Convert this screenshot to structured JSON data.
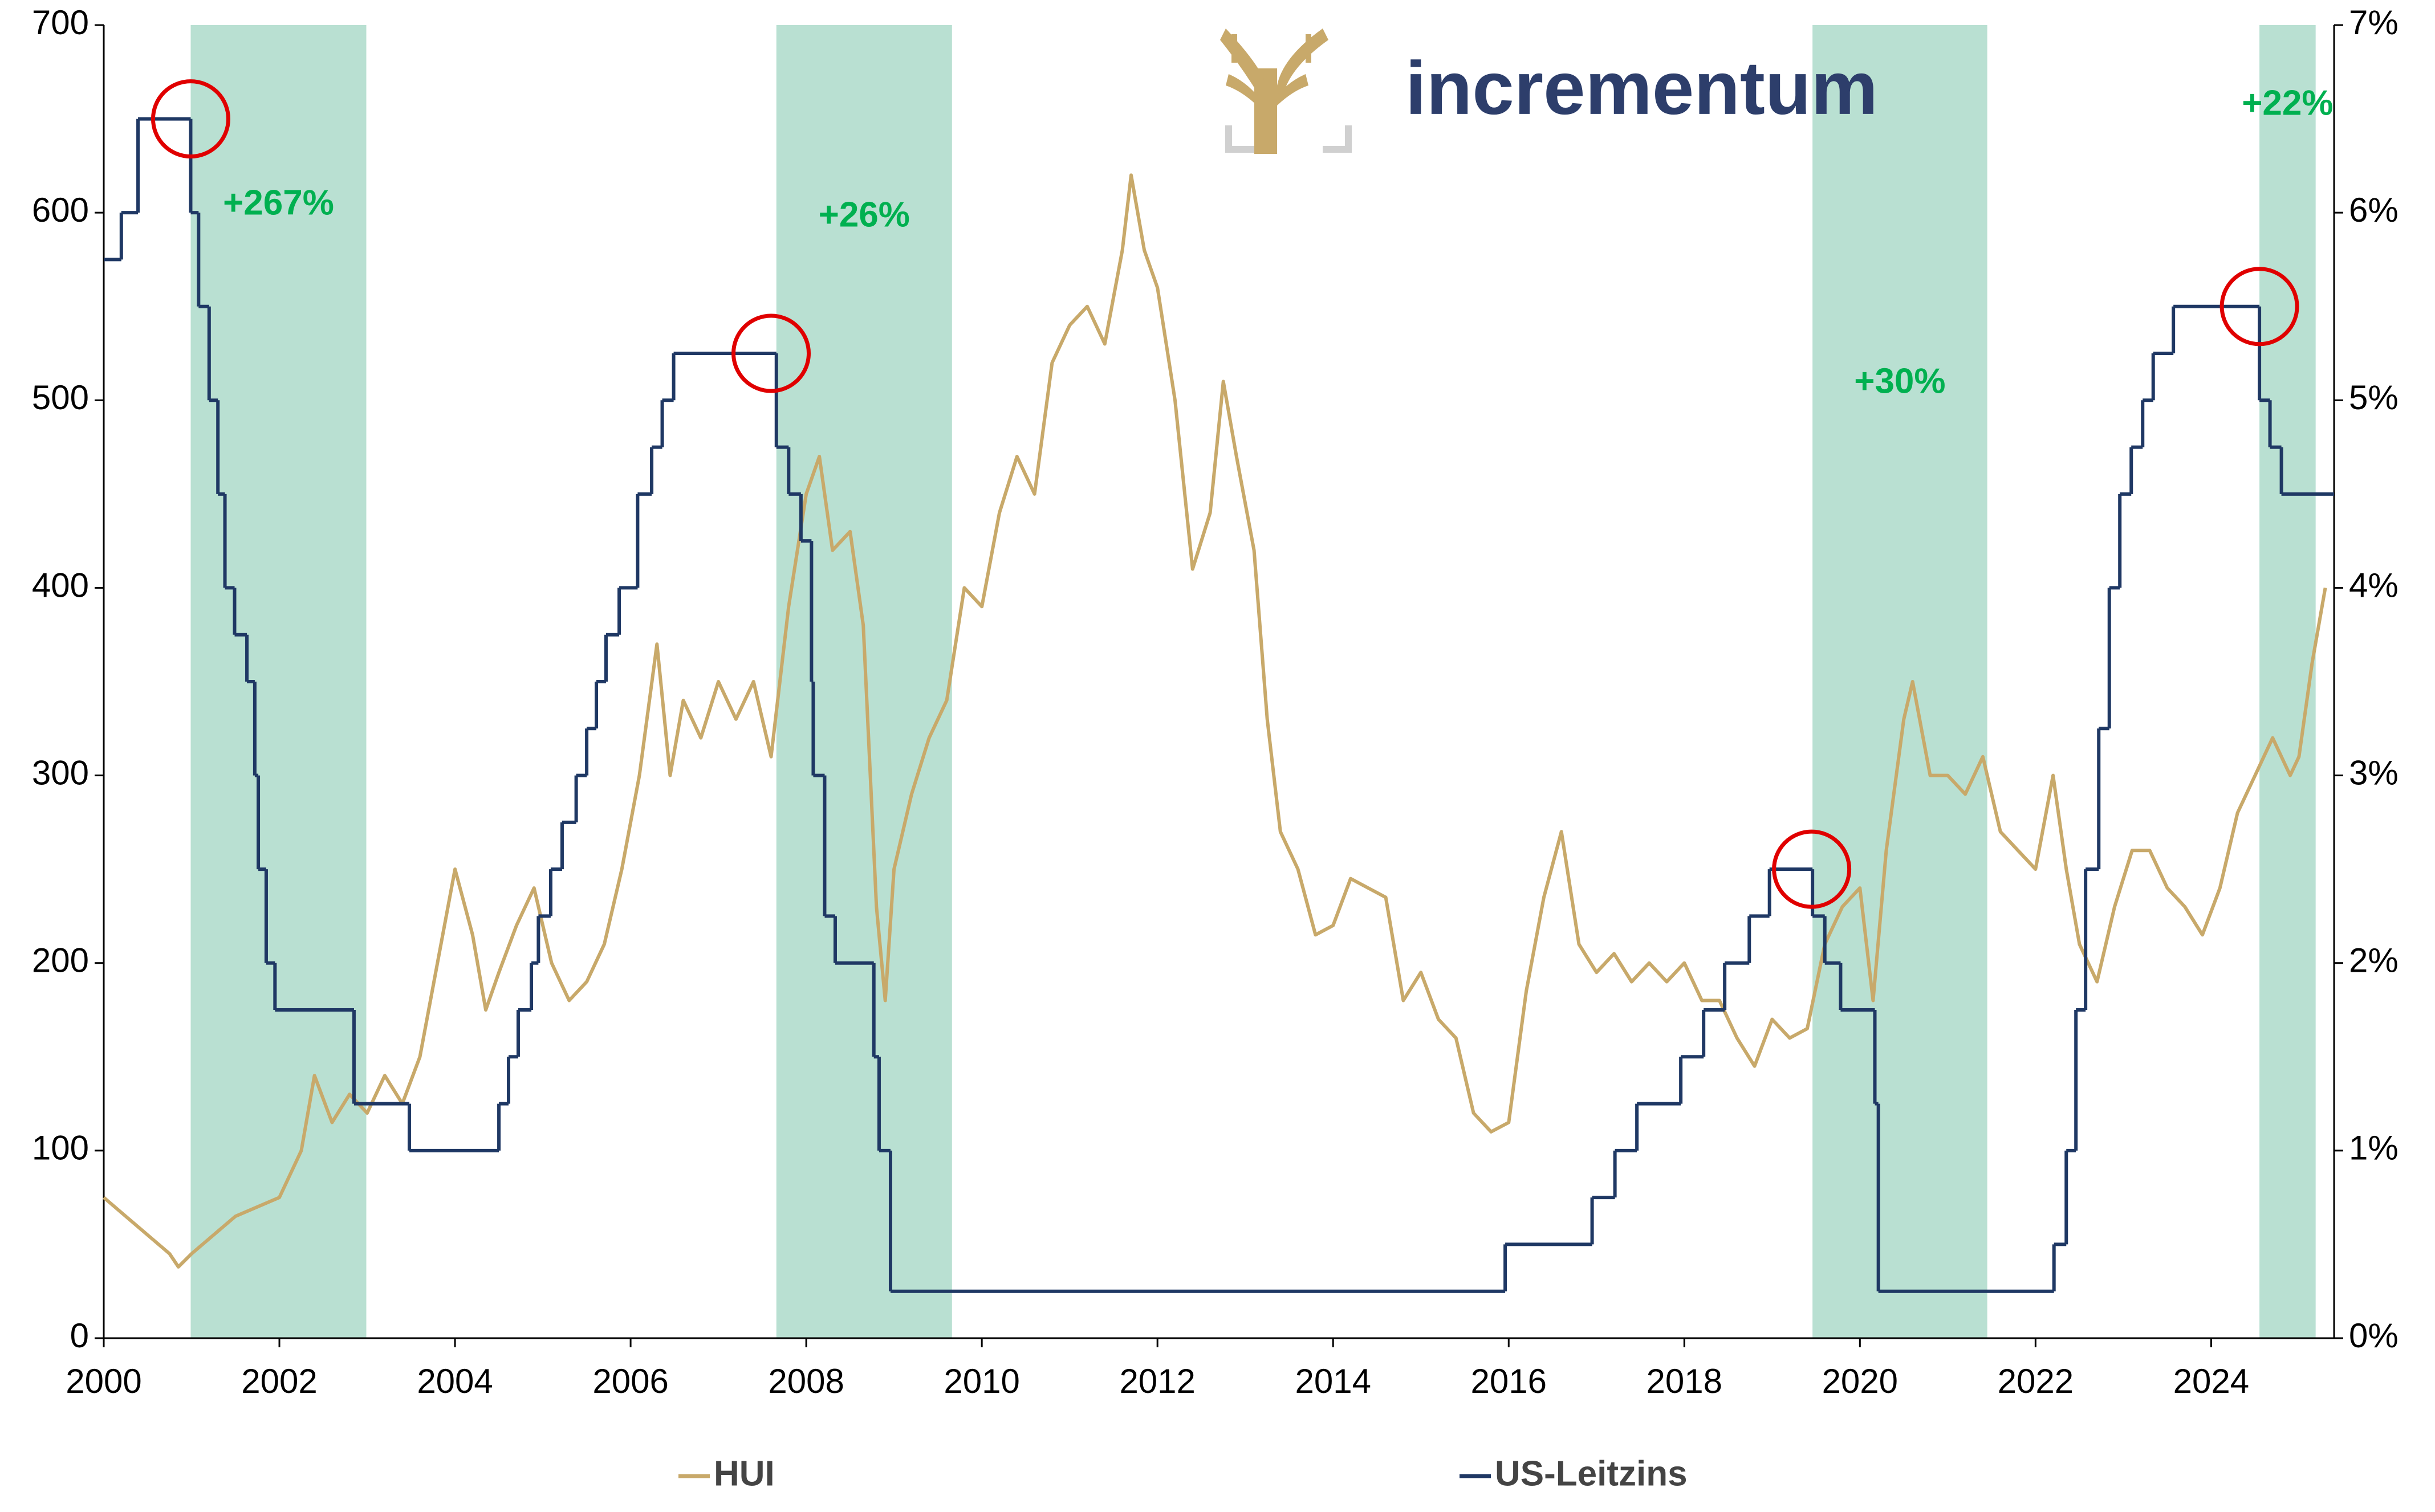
{
  "chart_data": {
    "type": "line",
    "logo": "incrementum",
    "xlim": [
      2000,
      2025.4
    ],
    "xticks": [
      2000,
      2002,
      2004,
      2006,
      2008,
      2010,
      2012,
      2014,
      2016,
      2018,
      2020,
      2022,
      2024
    ],
    "ylim": [
      0,
      700
    ],
    "yticks": [
      0,
      100,
      200,
      300,
      400,
      500,
      600,
      700
    ],
    "y2lim": [
      0,
      7
    ],
    "y2ticks": [
      {
        "value": 0,
        "label": "0%"
      },
      {
        "value": 1,
        "label": "1%"
      },
      {
        "value": 2,
        "label": "2%"
      },
      {
        "value": 3,
        "label": "3%"
      },
      {
        "value": 4,
        "label": "4%"
      },
      {
        "value": 5,
        "label": "5%"
      },
      {
        "value": 6,
        "label": "6%"
      },
      {
        "value": 7,
        "label": "7%"
      }
    ],
    "legend": "bottom",
    "series": [
      {
        "name": "HUI",
        "color": "#c8a96a",
        "step": false,
        "x": [
          2000.0,
          2000.25,
          2000.5,
          2000.75,
          2000.85,
          2001.0,
          2001.25,
          2001.5,
          2001.75,
          2002.0,
          2002.25,
          2002.4,
          2002.6,
          2002.8,
          2003.0,
          2003.2,
          2003.4,
          2003.6,
          2003.8,
          2004.0,
          2004.2,
          2004.35,
          2004.5,
          2004.7,
          2004.9,
          2005.1,
          2005.3,
          2005.5,
          2005.7,
          2005.9,
          2006.1,
          2006.3,
          2006.45,
          2006.6,
          2006.8,
          2007.0,
          2007.2,
          2007.4,
          2007.6,
          2007.8,
          2008.0,
          2008.15,
          2008.3,
          2008.5,
          2008.65,
          2008.8,
          2008.9,
          2009.0,
          2009.2,
          2009.4,
          2009.6,
          2009.8,
          2010.0,
          2010.2,
          2010.4,
          2010.6,
          2010.8,
          2011.0,
          2011.2,
          2011.4,
          2011.6,
          2011.7,
          2011.85,
          2012.0,
          2012.2,
          2012.4,
          2012.6,
          2012.75,
          2012.9,
          2013.1,
          2013.25,
          2013.4,
          2013.6,
          2013.8,
          2014.0,
          2014.2,
          2014.4,
          2014.6,
          2014.8,
          2015.0,
          2015.2,
          2015.4,
          2015.6,
          2015.8,
          2016.0,
          2016.2,
          2016.4,
          2016.6,
          2016.8,
          2017.0,
          2017.2,
          2017.4,
          2017.6,
          2017.8,
          2018.0,
          2018.2,
          2018.4,
          2018.6,
          2018.8,
          2019.0,
          2019.2,
          2019.4,
          2019.6,
          2019.8,
          2020.0,
          2020.15,
          2020.3,
          2020.5,
          2020.6,
          2020.8,
          2021.0,
          2021.2,
          2021.4,
          2021.6,
          2021.8,
          2022.0,
          2022.2,
          2022.35,
          2022.5,
          2022.7,
          2022.9,
          2023.1,
          2023.3,
          2023.5,
          2023.7,
          2023.9,
          2024.1,
          2024.3,
          2024.5,
          2024.7,
          2024.9,
          2025.0,
          2025.15,
          2025.3
        ],
        "values": [
          75,
          65,
          55,
          45,
          38,
          45,
          55,
          65,
          70,
          75,
          100,
          140,
          115,
          130,
          120,
          140,
          125,
          150,
          200,
          250,
          215,
          175,
          195,
          220,
          240,
          200,
          180,
          190,
          210,
          250,
          300,
          370,
          300,
          340,
          320,
          350,
          330,
          350,
          310,
          390,
          450,
          470,
          420,
          430,
          380,
          230,
          180,
          250,
          290,
          320,
          340,
          400,
          390,
          440,
          470,
          450,
          520,
          540,
          550,
          530,
          580,
          620,
          580,
          560,
          500,
          410,
          440,
          510,
          470,
          420,
          330,
          270,
          250,
          215,
          220,
          245,
          240,
          235,
          180,
          195,
          170,
          160,
          120,
          110,
          115,
          185,
          235,
          270,
          210,
          195,
          205,
          190,
          200,
          190,
          200,
          180,
          180,
          160,
          145,
          170,
          160,
          165,
          210,
          230,
          240,
          180,
          260,
          330,
          350,
          300,
          300,
          290,
          310,
          270,
          260,
          250,
          300,
          250,
          210,
          190,
          230,
          260,
          260,
          240,
          230,
          215,
          240,
          280,
          300,
          320,
          300,
          310,
          360,
          400
        ]
      },
      {
        "name": "US-Leitzins",
        "color": "#1f3864",
        "axis": "y2",
        "step": true,
        "x": [
          2000.0,
          2000.2,
          2000.39,
          2000.99,
          2001.08,
          2001.2,
          2001.3,
          2001.38,
          2001.49,
          2001.63,
          2001.72,
          2001.76,
          2001.85,
          2001.95,
          2002.85,
          2003.48,
          2004.5,
          2004.61,
          2004.72,
          2004.87,
          2004.95,
          2005.09,
          2005.22,
          2005.38,
          2005.5,
          2005.61,
          2005.72,
          2005.87,
          2006.08,
          2006.24,
          2006.36,
          2006.49,
          2007.66,
          2007.8,
          2007.94,
          2008.06,
          2008.08,
          2008.21,
          2008.33,
          2008.77,
          2008.83,
          2008.96,
          2015.96,
          2016.95,
          2017.21,
          2017.46,
          2017.96,
          2018.22,
          2018.46,
          2018.74,
          2018.97,
          2019.46,
          2019.6,
          2019.78,
          2020.17,
          2020.21,
          2022.21,
          2022.35,
          2022.46,
          2022.57,
          2022.72,
          2022.84,
          2022.96,
          2023.09,
          2023.22,
          2023.34,
          2023.57,
          2024.55,
          2024.67,
          2024.8,
          2025.4
        ],
        "values": [
          5.75,
          6.0,
          6.5,
          6.0,
          5.5,
          5.0,
          4.5,
          4.0,
          3.75,
          3.5,
          3.0,
          2.5,
          2.0,
          1.75,
          1.25,
          1.0,
          1.25,
          1.5,
          1.75,
          2.0,
          2.25,
          2.5,
          2.75,
          3.0,
          3.25,
          3.5,
          3.75,
          4.0,
          4.5,
          4.75,
          5.0,
          5.25,
          4.75,
          4.5,
          4.25,
          3.5,
          3.0,
          2.25,
          2.0,
          1.5,
          1.0,
          0.25,
          0.5,
          0.75,
          1.0,
          1.25,
          1.5,
          1.75,
          2.0,
          2.25,
          2.5,
          2.25,
          2.0,
          1.75,
          1.25,
          0.25,
          0.5,
          1.0,
          1.75,
          2.5,
          3.25,
          4.0,
          4.5,
          4.75,
          5.0,
          5.25,
          5.5,
          5.0,
          4.75,
          4.5,
          4.5
        ]
      }
    ],
    "periods": [
      {
        "start": 2000.99,
        "end": 2002.99,
        "label": "+267%",
        "color": "#b9e0d2"
      },
      {
        "start": 2007.66,
        "end": 2009.66,
        "label": "+26%",
        "color": "#b9e0d2"
      },
      {
        "start": 2019.46,
        "end": 2021.45,
        "label": "+30%",
        "color": "#b9e0d2"
      },
      {
        "start": 2024.55,
        "end": 2025.19,
        "label": "+22%",
        "color": "#b9e0d2"
      }
    ],
    "highlight_points": {
      "axis": "y2",
      "color": "#e00000",
      "x": [
        2000.99,
        2007.6,
        2019.45,
        2024.55
      ],
      "values": [
        6.5,
        5.25,
        2.5,
        5.5
      ]
    }
  }
}
